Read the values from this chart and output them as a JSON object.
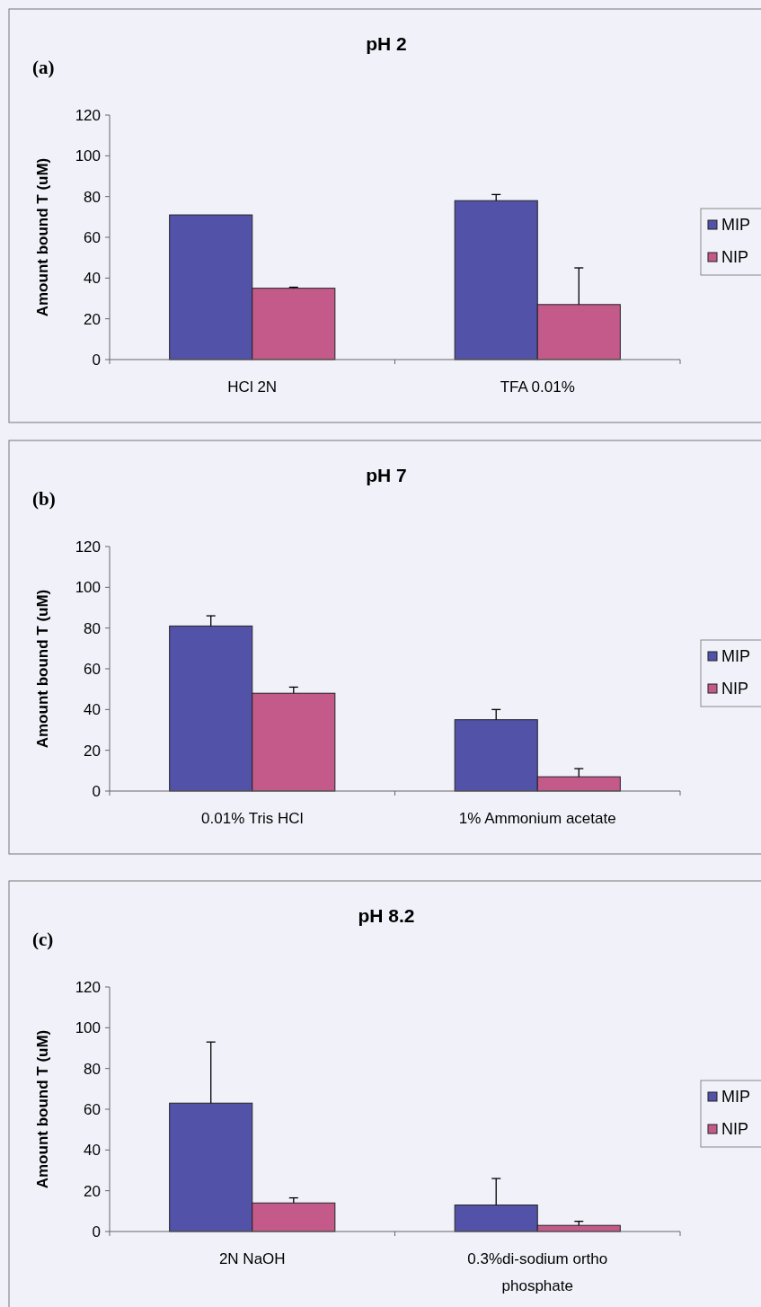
{
  "chart_data": [
    {
      "type": "bar",
      "title": "pH  2",
      "annotations": [
        "(a)"
      ],
      "ylabel": "Amount bound T (uM)",
      "categories": [
        "HCl 2N",
        "TFA 0.01%"
      ],
      "ylim": [
        0,
        120
      ],
      "yticks": [
        0,
        20,
        40,
        60,
        80,
        100,
        120
      ],
      "grid": false,
      "legend": "right",
      "series": [
        {
          "name": "MIP",
          "color": "#5252a8",
          "values": [
            71,
            78
          ],
          "errors": [
            null,
            [
              78,
              81
            ]
          ]
        },
        {
          "name": "NIP",
          "color": "#c45a8a",
          "values": [
            35,
            27
          ],
          "errors": [
            [
              35,
              35.5
            ],
            [
              27,
              45
            ]
          ]
        }
      ]
    },
    {
      "type": "bar",
      "title": "pH  7",
      "annotations": [
        "(b)"
      ],
      "ylabel": "Amount bound T (uM)",
      "categories": [
        "0.01% Tris HCl",
        "1% Ammonium acetate"
      ],
      "ylim": [
        0,
        120
      ],
      "yticks": [
        0,
        20,
        40,
        60,
        80,
        100,
        120
      ],
      "grid": false,
      "legend": "right",
      "series": [
        {
          "name": "MIP",
          "color": "#5252a8",
          "values": [
            81,
            35
          ],
          "errors": [
            [
              81,
              86
            ],
            [
              35,
              40
            ]
          ]
        },
        {
          "name": "NIP",
          "color": "#c45a8a",
          "values": [
            48,
            7
          ],
          "errors": [
            [
              48,
              51
            ],
            [
              7,
              11
            ]
          ]
        }
      ]
    },
    {
      "type": "bar",
      "title": "pH 8.2",
      "annotations": [
        "(c)"
      ],
      "ylabel": "Amount bound T (uM)",
      "categories": [
        "2N NaOH",
        "0.3%di-sodium ortho phosphate"
      ],
      "ylim": [
        0,
        120
      ],
      "yticks": [
        0,
        20,
        40,
        60,
        80,
        100,
        120
      ],
      "grid": false,
      "legend": "right",
      "series": [
        {
          "name": "MIP",
          "color": "#5252a8",
          "values": [
            63,
            13
          ],
          "errors": [
            [
              63,
              93
            ],
            [
              13,
              26
            ]
          ]
        },
        {
          "name": "NIP",
          "color": "#c45a8a",
          "values": [
            14,
            3
          ],
          "errors": [
            [
              14,
              16.5
            ],
            [
              3,
              5
            ]
          ]
        }
      ]
    }
  ]
}
